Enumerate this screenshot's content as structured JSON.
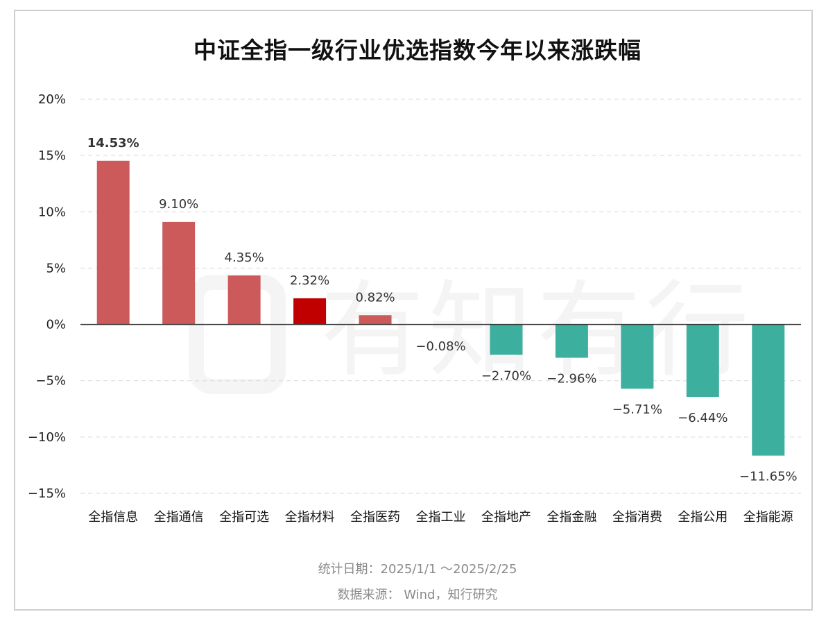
{
  "title": "中证全指一级行业优选指数今年以来涨跌幅",
  "watermark": "有知有行",
  "footer": {
    "date_range": "统计日期：2025/1/1 ～2025/2/25",
    "source": "数据来源： Wind，知行研究"
  },
  "colors": {
    "positive": "#cc5a5a",
    "highlight": "#c00000",
    "negative": "#3daf9e",
    "grid": "#d9d9d9",
    "axis": "#333333"
  },
  "chart_data": {
    "type": "bar",
    "title": "中证全指一级行业优选指数今年以来涨跌幅",
    "categories": [
      "全指信息",
      "全指通信",
      "全指可选",
      "全指材料",
      "全指医药",
      "全指工业",
      "全指地产",
      "全指金融",
      "全指消费",
      "全指公用",
      "全指能源"
    ],
    "values": [
      14.53,
      9.1,
      4.35,
      2.32,
      0.82,
      -0.08,
      -2.7,
      -2.96,
      -5.71,
      -6.44,
      -11.65
    ],
    "value_labels": [
      "14.53%",
      "9.10%",
      "4.35%",
      "2.32%",
      "0.82%",
      "−0.08%",
      "−2.70%",
      "−2.96%",
      "−5.71%",
      "−6.44%",
      "−11.65%"
    ],
    "highlight_category": "全指材料",
    "bold_label_category": "全指信息",
    "ylim": [
      -15,
      20
    ],
    "yticks": [
      20,
      15,
      10,
      5,
      0,
      -5,
      -10,
      -15
    ],
    "ytick_labels": [
      "20%",
      "15%",
      "10%",
      "5%",
      "0%",
      "−5%",
      "−10%",
      "−15%"
    ],
    "grid": true,
    "grid_style": "dashed"
  }
}
